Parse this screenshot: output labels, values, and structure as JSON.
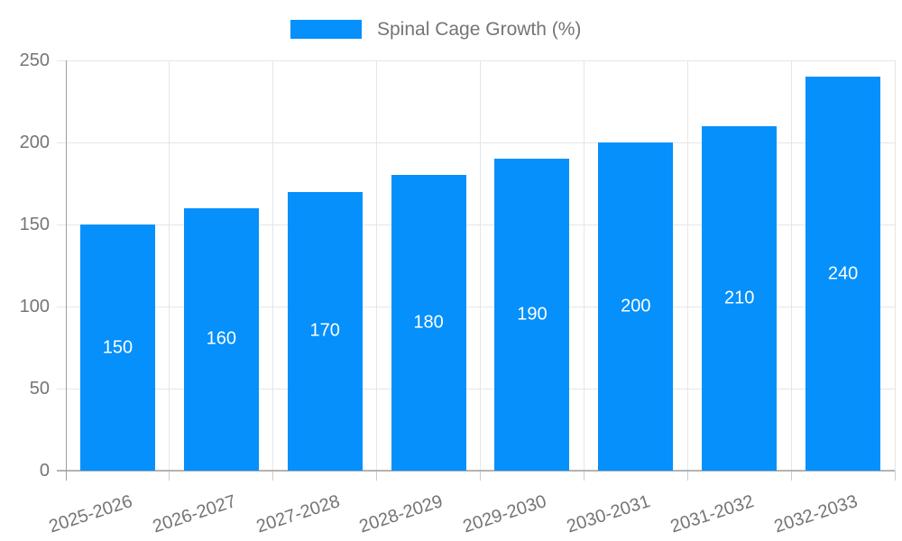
{
  "legend": {
    "label": "Spinal Cage Growth (%)"
  },
  "chart_data": {
    "type": "bar",
    "title": "",
    "xlabel": "",
    "ylabel": "",
    "series_name": "Spinal Cage Growth (%)",
    "categories": [
      "2025-2026",
      "2026-2027",
      "2027-2028",
      "2028-2029",
      "2029-2030",
      "2030-2031",
      "2031-2032",
      "2032-2033"
    ],
    "values": [
      150,
      160,
      170,
      180,
      190,
      200,
      210,
      240
    ],
    "ylim": [
      0,
      250
    ],
    "yticks": [
      0,
      50,
      100,
      150,
      200,
      250
    ],
    "grid": true,
    "legend_position": "top",
    "data_labels_inside_bars": true,
    "colors": {
      "bar": "#0590fb",
      "data_label": "#ffffff",
      "axis_text": "#757575",
      "gridline": "#e6e6e6",
      "tick": "#cccccc",
      "baseline": "#b3b3b3",
      "axis_line": "#9e9e9e",
      "background": "#ffffff"
    }
  }
}
